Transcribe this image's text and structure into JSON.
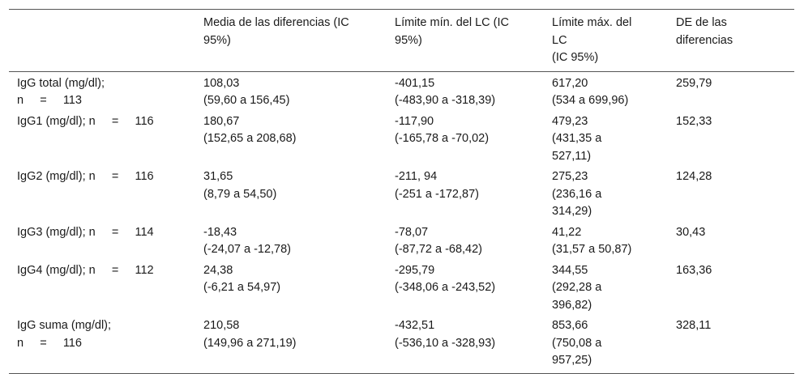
{
  "table": {
    "headers": [
      [
        ""
      ],
      [
        "Media de las diferencias (IC",
        "95%)"
      ],
      [
        "Límite mín. del LC (IC",
        "95%)"
      ],
      [
        "Límite máx. del",
        "LC",
        "(IC 95%)"
      ],
      [
        "DE de las",
        "diferencias"
      ]
    ],
    "rows": [
      [
        [
          "IgG total (mg/dl);",
          "n     =     113"
        ],
        [
          "108,03",
          "(59,60 a 156,45)"
        ],
        [
          "-401,15",
          "(-483,90 a -318,39)"
        ],
        [
          "617,20",
          "(534 a 699,96)"
        ],
        [
          "259,79"
        ]
      ],
      [
        [
          "IgG1 (mg/dl); n     =     116"
        ],
        [
          "180,67",
          "(152,65 a 208,68)"
        ],
        [
          "-117,90",
          "(-165,78 a -70,02)"
        ],
        [
          "479,23",
          "(431,35 a",
          "527,11)"
        ],
        [
          "152,33"
        ]
      ],
      [
        [
          "IgG2 (mg/dl); n     =     116"
        ],
        [
          "31,65",
          "(8,79 a 54,50)"
        ],
        [
          "-211, 94",
          "(-251 a -172,87)"
        ],
        [
          "275,23",
          "(236,16 a",
          "314,29)"
        ],
        [
          "124,28"
        ]
      ],
      [
        [
          "IgG3 (mg/dl); n     =     114"
        ],
        [
          "-18,43",
          "(-24,07 a -12,78)"
        ],
        [
          "-78,07",
          "(-87,72 a -68,42)"
        ],
        [
          "41,22",
          "(31,57 a 50,87)"
        ],
        [
          "30,43"
        ]
      ],
      [
        [
          "IgG4 (mg/dl); n     =     112"
        ],
        [
          "24,38",
          "(-6,21 a 54,97)"
        ],
        [
          "-295,79",
          "(-348,06 a -243,52)"
        ],
        [
          "344,55",
          "(292,28 a",
          "396,82)"
        ],
        [
          "163,36"
        ]
      ],
      [
        [
          "IgG suma (mg/dl);",
          "n     =     116"
        ],
        [
          "210,58",
          "(149,96 a 271,19)"
        ],
        [
          "-432,51",
          "(-536,10 a -328,93)"
        ],
        [
          "853,66",
          "(750,08 a",
          "957,25)"
        ],
        [
          "328,11"
        ]
      ]
    ]
  }
}
